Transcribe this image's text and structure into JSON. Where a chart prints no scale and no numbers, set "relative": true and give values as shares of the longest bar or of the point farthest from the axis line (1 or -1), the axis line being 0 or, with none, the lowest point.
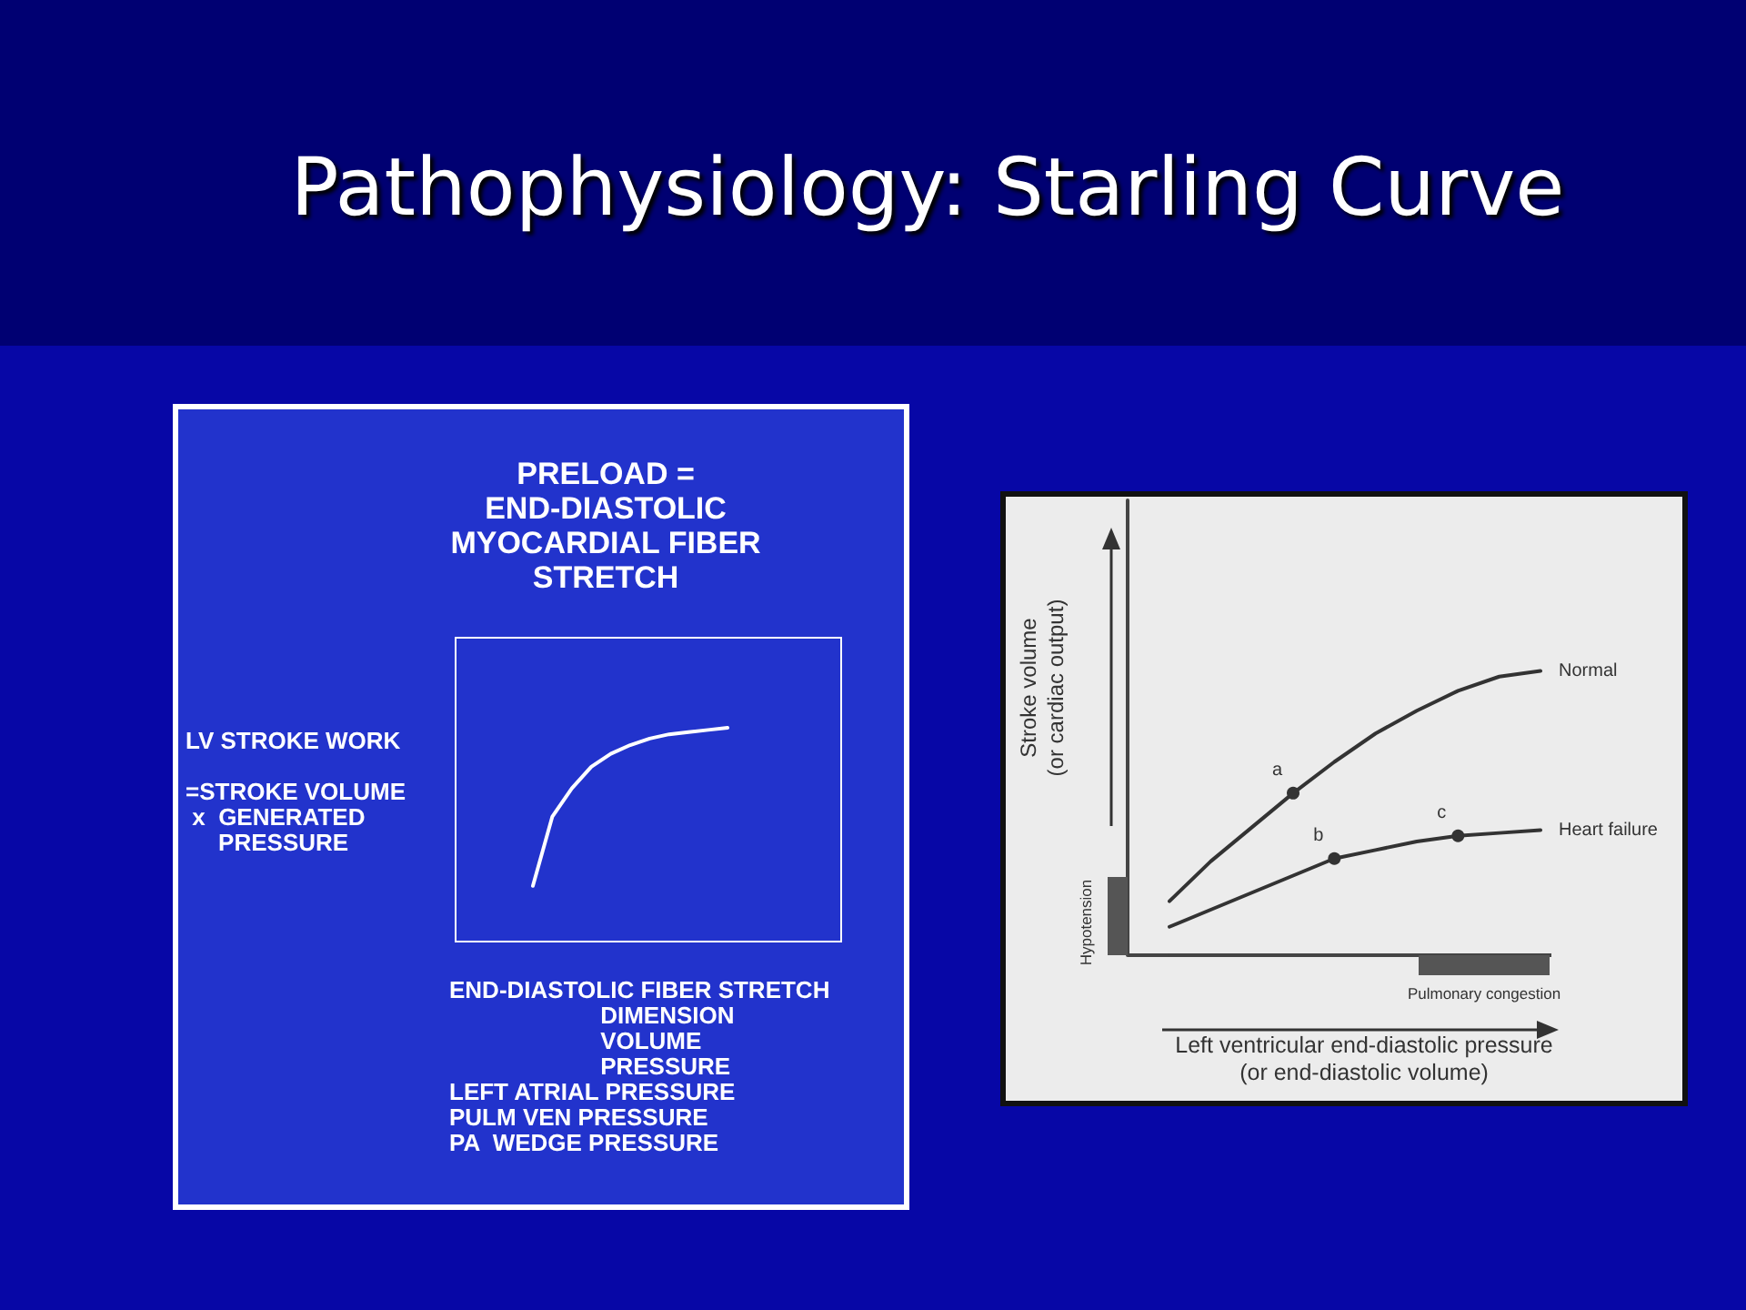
{
  "chart_data": [
    {
      "type": "line",
      "title": "Pathophysiology: Starling Curve",
      "subtitle": "PRELOAD =\nEND-DIASTOLIC\nMYOCARDIAL FIBER\nSTRETCH",
      "ylabel": "LV STROKE WORK\n\n=STROKE VOLUME\n x  GENERATED\n     PRESSURE",
      "xlabel": "END-DIASTOLIC FIBER STRETCH\n                       DIMENSION\n                       VOLUME\n                       PRESSURE\nLEFT ATRIAL PRESSURE\nPULM VEN PRESSURE\nPA  WEDGE PRESSURE",
      "relative": true,
      "categories": [
        null,
        null,
        null,
        null,
        null,
        null,
        null,
        null,
        null,
        null,
        null
      ],
      "series": [
        {
          "color": "#ffffff",
          "values": [
            0.27,
            0.59,
            0.72,
            0.82,
            0.88,
            0.92,
            0.95,
            0.97,
            0.98,
            0.99,
            1.0
          ]
        }
      ]
    },
    {
      "type": "line",
      "ylabel": "Stroke volume\n(or cardiac output)",
      "xlabel": "Left ventricular end-diastolic pressure\n(or end-diastolic volume)",
      "relative": true,
      "annotations": [
        "Hypotension",
        "Pulmonary congestion",
        {
          "text": "a",
          "y": 0.57
        },
        {
          "text": "b",
          "y": 0.34
        },
        {
          "text": "c",
          "y": 0.42
        }
      ],
      "categories": [
        null,
        null,
        null,
        null,
        null,
        null,
        null,
        null,
        null,
        null
      ],
      "series": [
        {
          "name": "Normal",
          "color": "#333333",
          "values": [
            0.19,
            0.33,
            0.45,
            0.57,
            0.68,
            0.78,
            0.86,
            0.93,
            0.98,
            1.0
          ]
        },
        {
          "name": "Heart failure",
          "color": "#333333",
          "values": [
            0.1,
            0.16,
            0.22,
            0.28,
            0.34,
            0.37,
            0.4,
            0.42,
            0.43,
            0.44
          ]
        }
      ]
    }
  ]
}
